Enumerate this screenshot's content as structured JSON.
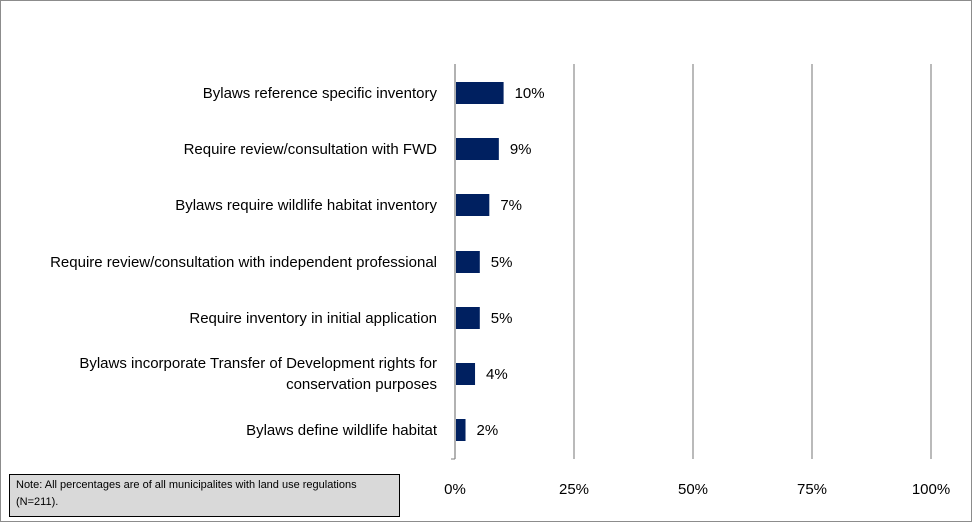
{
  "chart_data": {
    "type": "bar",
    "orientation": "horizontal",
    "categories": [
      "Bylaws reference specific inventory",
      "Require review/consultation with FWD",
      "Bylaws require wildlife habitat inventory",
      "Require review/consultation with independent professional",
      "Require inventory in initial application",
      "Bylaws incorporate Transfer of Development rights for conservation purposes",
      "Bylaws define wildlife habitat"
    ],
    "values": [
      10,
      9,
      7,
      5,
      5,
      4,
      2
    ],
    "value_labels": [
      "10%",
      "9%",
      "7%",
      "5%",
      "5%",
      "4%",
      "2%"
    ],
    "xlim": [
      0,
      100
    ],
    "xticks": [
      0,
      25,
      50,
      75,
      100
    ],
    "xtick_labels": [
      "0%",
      "25%",
      "50%",
      "75%",
      "100%"
    ],
    "grid": "vertical",
    "bar_color": "#002060",
    "title": "",
    "xlabel": "",
    "ylabel": ""
  },
  "note": "Note: All percentages are of all municipalites with land use regulations (N=211)."
}
